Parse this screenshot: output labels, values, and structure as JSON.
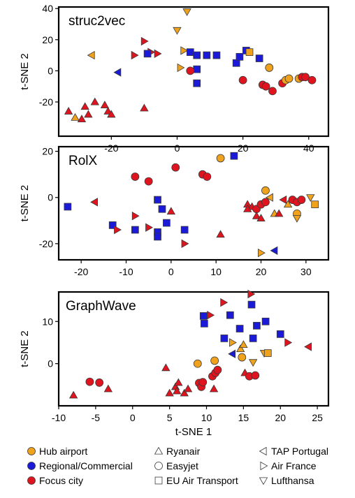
{
  "colors": {
    "hub": "#f0a21c",
    "regional": "#1a1ad8",
    "focus": "#e0141e",
    "stroke": "#3a3a3a"
  },
  "legend": {
    "classes": [
      {
        "key": "hub",
        "label": "Hub airport"
      },
      {
        "key": "regional",
        "label": "Regional/Commercial"
      },
      {
        "key": "focus",
        "label": "Focus city"
      }
    ],
    "airlines": [
      {
        "shape": "tri_up",
        "label": "Ryanair"
      },
      {
        "shape": "circle",
        "label": "Easyjet"
      },
      {
        "shape": "square",
        "label": "EU Air Transport"
      },
      {
        "shape": "tri_left",
        "label": "TAP Portugal"
      },
      {
        "shape": "tri_right",
        "label": "Air France"
      },
      {
        "shape": "tri_down",
        "label": "Lufthansa"
      }
    ]
  },
  "chart_data": [
    {
      "type": "scatter",
      "title": "struc2vec",
      "xlabel": "",
      "ylabel": "t-SNE 2",
      "xlim": [
        -36,
        46
      ],
      "ylim": [
        -42,
        41
      ],
      "xticks": [
        -20,
        0,
        20,
        40
      ],
      "yticks": [
        -20,
        0,
        20,
        40
      ],
      "points": [
        {
          "x": 3,
          "y": 38,
          "c": "hub",
          "s": "tri_down"
        },
        {
          "x": 0,
          "y": 26,
          "c": "hub",
          "s": "tri_down"
        },
        {
          "x": -26,
          "y": 10,
          "c": "hub",
          "s": "tri_left"
        },
        {
          "x": -10,
          "y": 19,
          "c": "focus",
          "s": "tri_right"
        },
        {
          "x": -13,
          "y": 10,
          "c": "focus",
          "s": "tri_right"
        },
        {
          "x": -8,
          "y": 12,
          "c": "focus",
          "s": "tri_right"
        },
        {
          "x": -6,
          "y": 11,
          "c": "focus",
          "s": "tri_right"
        },
        {
          "x": -9,
          "y": 11,
          "c": "regional",
          "s": "square"
        },
        {
          "x": -18,
          "y": -1,
          "c": "regional",
          "s": "tri_left"
        },
        {
          "x": 2,
          "y": 13,
          "c": "hub",
          "s": "tri_right"
        },
        {
          "x": 4,
          "y": 12,
          "c": "regional",
          "s": "square"
        },
        {
          "x": 6,
          "y": 10,
          "c": "regional",
          "s": "square"
        },
        {
          "x": 9,
          "y": 10,
          "c": "regional",
          "s": "square"
        },
        {
          "x": 12,
          "y": 10,
          "c": "regional",
          "s": "square"
        },
        {
          "x": 6,
          "y": 1,
          "c": "regional",
          "s": "square"
        },
        {
          "x": 6,
          "y": -8,
          "c": "regional",
          "s": "square"
        },
        {
          "x": 1,
          "y": 2,
          "c": "hub",
          "s": "tri_right"
        },
        {
          "x": 4,
          "y": 0,
          "c": "focus",
          "s": "circle"
        },
        {
          "x": 18,
          "y": 5,
          "c": "regional",
          "s": "square"
        },
        {
          "x": 19,
          "y": 9,
          "c": "regional",
          "s": "square"
        },
        {
          "x": 21,
          "y": 13,
          "c": "regional",
          "s": "square"
        },
        {
          "x": 22,
          "y": 12,
          "c": "hub",
          "s": "square"
        },
        {
          "x": 25,
          "y": 8,
          "c": "regional",
          "s": "square"
        },
        {
          "x": 28,
          "y": 2,
          "c": "hub",
          "s": "circle"
        },
        {
          "x": 20,
          "y": -6,
          "c": "focus",
          "s": "circle"
        },
        {
          "x": 26,
          "y": -9,
          "c": "focus",
          "s": "circle"
        },
        {
          "x": 27,
          "y": -10,
          "c": "focus",
          "s": "circle"
        },
        {
          "x": 29,
          "y": -13,
          "c": "focus",
          "s": "circle"
        },
        {
          "x": 32,
          "y": -8,
          "c": "focus",
          "s": "circle"
        },
        {
          "x": 33,
          "y": -6,
          "c": "hub",
          "s": "circle"
        },
        {
          "x": 34,
          "y": -5,
          "c": "hub",
          "s": "circle"
        },
        {
          "x": 37,
          "y": -5,
          "c": "hub",
          "s": "circle"
        },
        {
          "x": 38,
          "y": -4,
          "c": "focus",
          "s": "circle"
        },
        {
          "x": 39,
          "y": -4,
          "c": "focus",
          "s": "circle"
        },
        {
          "x": 41,
          "y": -6,
          "c": "focus",
          "s": "circle"
        },
        {
          "x": -33,
          "y": -26,
          "c": "focus",
          "s": "tri_up"
        },
        {
          "x": -31,
          "y": -30,
          "c": "hub",
          "s": "tri_up"
        },
        {
          "x": -29,
          "y": -31,
          "c": "focus",
          "s": "tri_up"
        },
        {
          "x": -28,
          "y": -23,
          "c": "focus",
          "s": "tri_up"
        },
        {
          "x": -27,
          "y": -28,
          "c": "focus",
          "s": "tri_up"
        },
        {
          "x": -25,
          "y": -20,
          "c": "focus",
          "s": "tri_up"
        },
        {
          "x": -22,
          "y": -22,
          "c": "focus",
          "s": "tri_up"
        },
        {
          "x": -21,
          "y": -26,
          "c": "focus",
          "s": "tri_up"
        },
        {
          "x": -20,
          "y": -28,
          "c": "focus",
          "s": "tri_up"
        },
        {
          "x": -10,
          "y": -24,
          "c": "focus",
          "s": "tri_up"
        }
      ]
    },
    {
      "type": "scatter",
      "title": "RolX",
      "xlabel": "",
      "ylabel": "t-SNE 2",
      "xlim": [
        -25,
        35
      ],
      "ylim": [
        -27,
        22
      ],
      "xticks": [
        -20,
        -10,
        0,
        10,
        20,
        30
      ],
      "yticks": [
        -20,
        0,
        20
      ],
      "points": [
        {
          "x": 11,
          "y": 17,
          "c": "hub",
          "s": "circle"
        },
        {
          "x": 14,
          "y": 18,
          "c": "regional",
          "s": "square"
        },
        {
          "x": -8,
          "y": 9,
          "c": "focus",
          "s": "circle"
        },
        {
          "x": -5,
          "y": 7,
          "c": "focus",
          "s": "circle"
        },
        {
          "x": 1,
          "y": 13,
          "c": "focus",
          "s": "circle"
        },
        {
          "x": 7,
          "y": 10,
          "c": "focus",
          "s": "circle"
        },
        {
          "x": 8,
          "y": 9,
          "c": "focus",
          "s": "circle"
        },
        {
          "x": -23,
          "y": -4,
          "c": "regional",
          "s": "square"
        },
        {
          "x": -17,
          "y": -2,
          "c": "focus",
          "s": "tri_left"
        },
        {
          "x": -8,
          "y": -8,
          "c": "focus",
          "s": "tri_right"
        },
        {
          "x": -13,
          "y": -12,
          "c": "regional",
          "s": "square"
        },
        {
          "x": -12,
          "y": -14,
          "c": "focus",
          "s": "tri_right"
        },
        {
          "x": -8,
          "y": -14,
          "c": "regional",
          "s": "square"
        },
        {
          "x": -5,
          "y": -13,
          "c": "focus",
          "s": "tri_right"
        },
        {
          "x": -3,
          "y": -1,
          "c": "regional",
          "s": "square"
        },
        {
          "x": -2,
          "y": -5,
          "c": "regional",
          "s": "square"
        },
        {
          "x": 0,
          "y": -6,
          "c": "focus",
          "s": "tri_up"
        },
        {
          "x": -3,
          "y": -15,
          "c": "regional",
          "s": "square"
        },
        {
          "x": -3,
          "y": -17,
          "c": "regional",
          "s": "square"
        },
        {
          "x": -1,
          "y": -11,
          "c": "regional",
          "s": "square"
        },
        {
          "x": 3,
          "y": -14,
          "c": "regional",
          "s": "square"
        },
        {
          "x": 3,
          "y": -20,
          "c": "focus",
          "s": "tri_right"
        },
        {
          "x": 11,
          "y": -16,
          "c": "focus",
          "s": "tri_up"
        },
        {
          "x": 20,
          "y": -24,
          "c": "hub",
          "s": "tri_right"
        },
        {
          "x": 23,
          "y": -23,
          "c": "regional",
          "s": "tri_left"
        },
        {
          "x": 17,
          "y": -3,
          "c": "focus",
          "s": "tri_up"
        },
        {
          "x": 18,
          "y": -4,
          "c": "focus",
          "s": "tri_up"
        },
        {
          "x": 17,
          "y": -5,
          "c": "focus",
          "s": "tri_up"
        },
        {
          "x": 19,
          "y": -5,
          "c": "focus",
          "s": "circle"
        },
        {
          "x": 20,
          "y": -3,
          "c": "focus",
          "s": "circle"
        },
        {
          "x": 21,
          "y": -2,
          "c": "focus",
          "s": "circle"
        },
        {
          "x": 19,
          "y": -8,
          "c": "focus",
          "s": "tri_up"
        },
        {
          "x": 20,
          "y": -9,
          "c": "focus",
          "s": "tri_up"
        },
        {
          "x": 21,
          "y": 3,
          "c": "hub",
          "s": "circle"
        },
        {
          "x": 22,
          "y": 0,
          "c": "hub",
          "s": "tri_left"
        },
        {
          "x": 23,
          "y": -7,
          "c": "hub",
          "s": "tri_up"
        },
        {
          "x": 24,
          "y": -7,
          "c": "focus",
          "s": "tri_up"
        },
        {
          "x": 25,
          "y": -1,
          "c": "focus",
          "s": "tri_left"
        },
        {
          "x": 27,
          "y": -1,
          "c": "focus",
          "s": "circle"
        },
        {
          "x": 28,
          "y": -2,
          "c": "focus",
          "s": "circle"
        },
        {
          "x": 26,
          "y": -3,
          "c": "hub",
          "s": "tri_up"
        },
        {
          "x": 29,
          "y": -1,
          "c": "focus",
          "s": "circle"
        },
        {
          "x": 28,
          "y": -7,
          "c": "hub",
          "s": "circle"
        },
        {
          "x": 28,
          "y": -9,
          "c": "hub",
          "s": "tri_down"
        },
        {
          "x": 31,
          "y": 0,
          "c": "hub",
          "s": "tri_down"
        },
        {
          "x": 32,
          "y": -3,
          "c": "hub",
          "s": "square"
        }
      ]
    },
    {
      "type": "scatter",
      "title": "GraphWave",
      "xlabel": "t-SNE 1",
      "ylabel": "t-SNE 2",
      "xlim": [
        -10,
        26.5
      ],
      "ylim": [
        -10,
        17
      ],
      "xticks": [
        -10,
        -5,
        0,
        5,
        10,
        15,
        20,
        25
      ],
      "yticks": [
        0,
        10
      ],
      "points": [
        {
          "x": -8,
          "y": -7.5,
          "c": "focus",
          "s": "tri_up"
        },
        {
          "x": -5.8,
          "y": -4.3,
          "c": "focus",
          "s": "circle"
        },
        {
          "x": -4.5,
          "y": -4.5,
          "c": "focus",
          "s": "circle"
        },
        {
          "x": -3.3,
          "y": -6,
          "c": "focus",
          "s": "tri_up"
        },
        {
          "x": 4.5,
          "y": -1,
          "c": "focus",
          "s": "tri_up"
        },
        {
          "x": 5,
          "y": -7,
          "c": "focus",
          "s": "tri_up"
        },
        {
          "x": 5.8,
          "y": -5.5,
          "c": "focus",
          "s": "tri_up"
        },
        {
          "x": 6,
          "y": -6.5,
          "c": "focus",
          "s": "tri_up"
        },
        {
          "x": 6.2,
          "y": -4.5,
          "c": "focus",
          "s": "tri_up"
        },
        {
          "x": 7,
          "y": -7,
          "c": "focus",
          "s": "tri_up"
        },
        {
          "x": 7.5,
          "y": -6,
          "c": "focus",
          "s": "tri_up"
        },
        {
          "x": 8.8,
          "y": 0,
          "c": "hub",
          "s": "circle"
        },
        {
          "x": 9,
          "y": -4.6,
          "c": "focus",
          "s": "circle"
        },
        {
          "x": 9.3,
          "y": -5.5,
          "c": "focus",
          "s": "circle"
        },
        {
          "x": 9.5,
          "y": -4.4,
          "c": "focus",
          "s": "circle"
        },
        {
          "x": 9.6,
          "y": 11.3,
          "c": "regional",
          "s": "square"
        },
        {
          "x": 9.7,
          "y": 9.5,
          "c": "regional",
          "s": "square"
        },
        {
          "x": 10.5,
          "y": 11.5,
          "c": "focus",
          "s": "tri_right"
        },
        {
          "x": 10.8,
          "y": -3,
          "c": "focus",
          "s": "circle"
        },
        {
          "x": 11.2,
          "y": -2.2,
          "c": "focus",
          "s": "circle"
        },
        {
          "x": 11.1,
          "y": 0.7,
          "c": "hub",
          "s": "circle"
        },
        {
          "x": 11,
          "y": -6,
          "c": "focus",
          "s": "tri_up"
        },
        {
          "x": 11.5,
          "y": -1.5,
          "c": "focus",
          "s": "circle"
        },
        {
          "x": 12.3,
          "y": 14.5,
          "c": "focus",
          "s": "tri_right"
        },
        {
          "x": 12.4,
          "y": 6,
          "c": "regional",
          "s": "square"
        },
        {
          "x": 13.2,
          "y": 11.5,
          "c": "regional",
          "s": "square"
        },
        {
          "x": 13.5,
          "y": 2.3,
          "c": "regional",
          "s": "tri_left"
        },
        {
          "x": 13.5,
          "y": 5,
          "c": "hub",
          "s": "tri_right"
        },
        {
          "x": 14.5,
          "y": 8.3,
          "c": "regional",
          "s": "square"
        },
        {
          "x": 14.6,
          "y": 3.5,
          "c": "hub",
          "s": "tri_up"
        },
        {
          "x": 14.8,
          "y": 1.5,
          "c": "hub",
          "s": "circle"
        },
        {
          "x": 15,
          "y": 4.5,
          "c": "hub",
          "s": "tri_up"
        },
        {
          "x": 15.2,
          "y": -2.2,
          "c": "focus",
          "s": "tri_up"
        },
        {
          "x": 15.8,
          "y": -3,
          "c": "focus",
          "s": "circle"
        },
        {
          "x": 16,
          "y": 16.5,
          "c": "focus",
          "s": "tri_right"
        },
        {
          "x": 16.1,
          "y": 14,
          "c": "regional",
          "s": "square"
        },
        {
          "x": 16.3,
          "y": 6,
          "c": "regional",
          "s": "square"
        },
        {
          "x": 16.3,
          "y": 0.3,
          "c": "hub",
          "s": "tri_down"
        },
        {
          "x": 16.6,
          "y": -2.8,
          "c": "focus",
          "s": "circle"
        },
        {
          "x": 16.8,
          "y": 9,
          "c": "regional",
          "s": "square"
        },
        {
          "x": 17.8,
          "y": 2.5,
          "c": "hub",
          "s": "tri_down"
        },
        {
          "x": 18,
          "y": 10,
          "c": "regional",
          "s": "square"
        },
        {
          "x": 18.3,
          "y": 2.5,
          "c": "hub",
          "s": "square"
        },
        {
          "x": 20,
          "y": 7,
          "c": "regional",
          "s": "square"
        },
        {
          "x": 21,
          "y": 5,
          "c": "focus",
          "s": "tri_right"
        },
        {
          "x": 23.8,
          "y": 4,
          "c": "focus",
          "s": "tri_left"
        }
      ]
    }
  ]
}
